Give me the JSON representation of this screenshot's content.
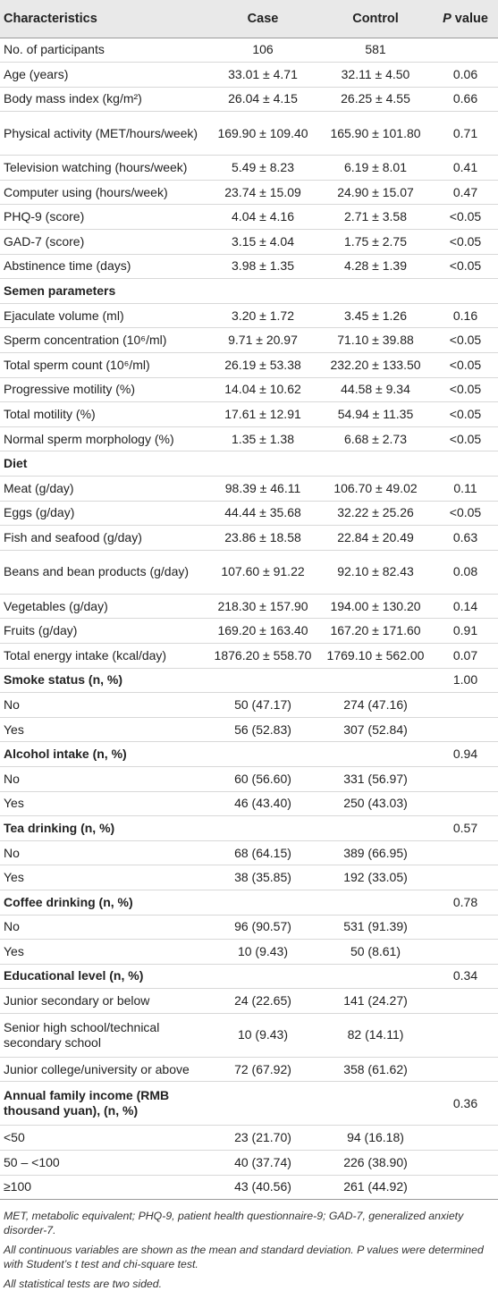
{
  "header": {
    "characteristics": "Characteristics",
    "case": "Case",
    "control": "Control",
    "p_value_italic": "P",
    "p_value_rest": " value"
  },
  "rows": [
    {
      "label": "No. of participants",
      "case": "106",
      "control": "581",
      "p": "",
      "type": "row"
    },
    {
      "label": "Age (years)",
      "case": "33.01 ± 4.71",
      "control": "32.11 ± 4.50",
      "p": "0.06",
      "type": "row"
    },
    {
      "label": "Body mass index (kg/m²)",
      "case": "26.04 ± 4.15",
      "control": "26.25 ± 4.55",
      "p": "0.66",
      "type": "row"
    },
    {
      "label": "Physical activity (MET/hours/week)",
      "case": "169.90 ± 109.40",
      "control": "165.90 ± 101.80",
      "p": "0.71",
      "type": "tall"
    },
    {
      "label": "Television watching (hours/week)",
      "case": "5.49 ± 8.23",
      "control": "6.19 ± 8.01",
      "p": "0.41",
      "type": "row"
    },
    {
      "label": "Computer using (hours/week)",
      "case": "23.74 ± 15.09",
      "control": "24.90 ± 15.07",
      "p": "0.47",
      "type": "row"
    },
    {
      "label": "PHQ-9 (score)",
      "case": "4.04 ± 4.16",
      "control": "2.71 ± 3.58",
      "p": "<0.05",
      "type": "row"
    },
    {
      "label": "GAD-7 (score)",
      "case": "3.15 ± 4.04",
      "control": "1.75 ± 2.75",
      "p": "<0.05",
      "type": "row"
    },
    {
      "label": "Abstinence time (days)",
      "case": "3.98 ± 1.35",
      "control": "4.28 ± 1.39",
      "p": "<0.05",
      "type": "row"
    },
    {
      "label": "Semen parameters",
      "case": "",
      "control": "",
      "p": "",
      "type": "sec"
    },
    {
      "label": "Ejaculate volume (ml)",
      "case": "3.20 ± 1.72",
      "control": "3.45 ± 1.26",
      "p": "0.16",
      "type": "row"
    },
    {
      "label": "Sperm concentration (10⁶/ml)",
      "case": "9.71 ± 20.97",
      "control": "71.10 ± 39.88",
      "p": "<0.05",
      "type": "row"
    },
    {
      "label": "Total sperm count (10⁶/ml)",
      "case": "26.19 ± 53.38",
      "control": "232.20 ± 133.50",
      "p": "<0.05",
      "type": "row"
    },
    {
      "label": "Progressive motility (%)",
      "case": "14.04 ± 10.62",
      "control": "44.58 ± 9.34",
      "p": "<0.05",
      "type": "row"
    },
    {
      "label": "Total motility (%)",
      "case": "17.61 ± 12.91",
      "control": "54.94 ± 11.35",
      "p": "<0.05",
      "type": "row"
    },
    {
      "label": "Normal sperm morphology (%)",
      "case": "1.35 ± 1.38",
      "control": "6.68 ± 2.73",
      "p": "<0.05",
      "type": "row"
    },
    {
      "label": "Diet",
      "case": "",
      "control": "",
      "p": "",
      "type": "sec"
    },
    {
      "label": "Meat (g/day)",
      "case": "98.39 ± 46.11",
      "control": "106.70 ± 49.02",
      "p": "0.11",
      "type": "row"
    },
    {
      "label": "Eggs (g/day)",
      "case": "44.44 ± 35.68",
      "control": "32.22 ± 25.26",
      "p": "<0.05",
      "type": "row"
    },
    {
      "label": "Fish and seafood (g/day)",
      "case": "23.86 ± 18.58",
      "control": "22.84 ± 20.49",
      "p": "0.63",
      "type": "row"
    },
    {
      "label": "Beans and bean products (g/day)",
      "case": "107.60 ± 91.22",
      "control": "92.10 ± 82.43",
      "p": "0.08",
      "type": "tall"
    },
    {
      "label": "Vegetables (g/day)",
      "case": "218.30 ± 157.90",
      "control": "194.00 ± 130.20",
      "p": "0.14",
      "type": "row"
    },
    {
      "label": "Fruits (g/day)",
      "case": "169.20 ± 163.40",
      "control": "167.20 ± 171.60",
      "p": "0.91",
      "type": "row"
    },
    {
      "label": "Total energy intake (kcal/day)",
      "case": "1876.20 ± 558.70",
      "control": "1769.10 ± 562.00",
      "p": "0.07",
      "type": "row"
    },
    {
      "label": "Smoke status (n, %)",
      "case": "",
      "control": "",
      "p": "1.00",
      "type": "sec"
    },
    {
      "label": "No",
      "case": "50 (47.17)",
      "control": "274 (47.16)",
      "p": "",
      "type": "row"
    },
    {
      "label": "Yes",
      "case": "56 (52.83)",
      "control": "307 (52.84)",
      "p": "",
      "type": "row"
    },
    {
      "label": "Alcohol intake (n, %)",
      "case": "",
      "control": "",
      "p": "0.94",
      "type": "sec"
    },
    {
      "label": "No",
      "case": "60 (56.60)",
      "control": "331 (56.97)",
      "p": "",
      "type": "row"
    },
    {
      "label": "Yes",
      "case": "46 (43.40)",
      "control": "250 (43.03)",
      "p": "",
      "type": "row"
    },
    {
      "label": "Tea drinking (n, %)",
      "case": "",
      "control": "",
      "p": "0.57",
      "type": "sec"
    },
    {
      "label": "No",
      "case": "68 (64.15)",
      "control": "389 (66.95)",
      "p": "",
      "type": "row"
    },
    {
      "label": "Yes",
      "case": "38 (35.85)",
      "control": "192 (33.05)",
      "p": "",
      "type": "row"
    },
    {
      "label": "Coffee drinking (n, %)",
      "case": "",
      "control": "",
      "p": "0.78",
      "type": "sec"
    },
    {
      "label": "No",
      "case": "96 (90.57)",
      "control": "531 (91.39)",
      "p": "",
      "type": "row"
    },
    {
      "label": "Yes",
      "case": "10 (9.43)",
      "control": "50 (8.61)",
      "p": "",
      "type": "row"
    },
    {
      "label": "Educational level (n, %)",
      "case": "",
      "control": "",
      "p": "0.34",
      "type": "sec"
    },
    {
      "label": "Junior secondary or below",
      "case": "24 (22.65)",
      "control": "141 (24.27)",
      "p": "",
      "type": "row"
    },
    {
      "label": "Senior high school/technical secondary school",
      "case": "10 (9.43)",
      "control": "82 (14.11)",
      "p": "",
      "type": "tall"
    },
    {
      "label": "Junior college/university or above",
      "case": "72 (67.92)",
      "control": "358 (61.62)",
      "p": "",
      "type": "row"
    },
    {
      "label": "Annual family income (RMB thousand yuan), (n, %)",
      "case": "",
      "control": "",
      "p": "0.36",
      "type": "sectall"
    },
    {
      "label": "<50",
      "case": "23 (21.70)",
      "control": "94 (16.18)",
      "p": "",
      "type": "row"
    },
    {
      "label": "50 – <100",
      "case": "40 (37.74)",
      "control": "226 (38.90)",
      "p": "",
      "type": "row"
    },
    {
      "label": "≥100",
      "case": "43 (40.56)",
      "control": "261 (44.92)",
      "p": "",
      "type": "row"
    }
  ],
  "footnotes": [
    "MET, metabolic equivalent; PHQ-9, patient health questionnaire-9; GAD-7, generalized anxiety disorder-7.",
    "All continuous variables are shown as the mean and standard deviation. P values were determined with Student’s t test and chi-square test.",
    "All statistical tests are two sided."
  ]
}
